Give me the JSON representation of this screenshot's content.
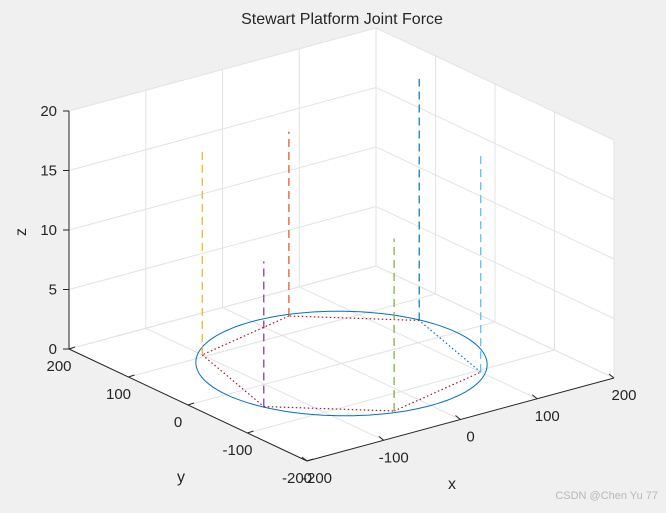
{
  "chart_data": {
    "type": "line",
    "title": "Stewart Platform Joint Force",
    "xlabel": "x",
    "ylabel": "y",
    "zlabel": "z",
    "xlim": [
      -200,
      200
    ],
    "ylim": [
      -200,
      200
    ],
    "zlim": [
      0,
      20
    ],
    "xticks": [
      -200,
      -100,
      0,
      100,
      200
    ],
    "yticks": [
      -200,
      -100,
      0,
      100,
      200
    ],
    "zticks": [
      0,
      5,
      10,
      15,
      20
    ],
    "grid": true,
    "view": {
      "azimuth": -37.5,
      "elevation": 30
    },
    "base_circle": {
      "radius": 150,
      "color": "#0072BD"
    },
    "joints": [
      {
        "x": 140,
        "y": 50,
        "top": 20.3,
        "color": "#0072BD"
      },
      {
        "x": 40,
        "y": 140,
        "top": 15.5,
        "color": "#D95319"
      },
      {
        "x": -100,
        "y": 105,
        "top": 17.5,
        "color": "#EDB120"
      },
      {
        "x": -140,
        "y": -50,
        "top": 12.2,
        "color": "#7E2F8E"
      },
      {
        "x": -40,
        "y": -140,
        "top": 14.5,
        "color": "#77AC30"
      },
      {
        "x": 100,
        "y": -105,
        "top": 18.5,
        "color": "#4DBEEE"
      }
    ],
    "hexagon_color": "#A2142F",
    "hexagon_color_b": "#0072BD"
  },
  "watermark": "CSDN @Chen Yu 77"
}
